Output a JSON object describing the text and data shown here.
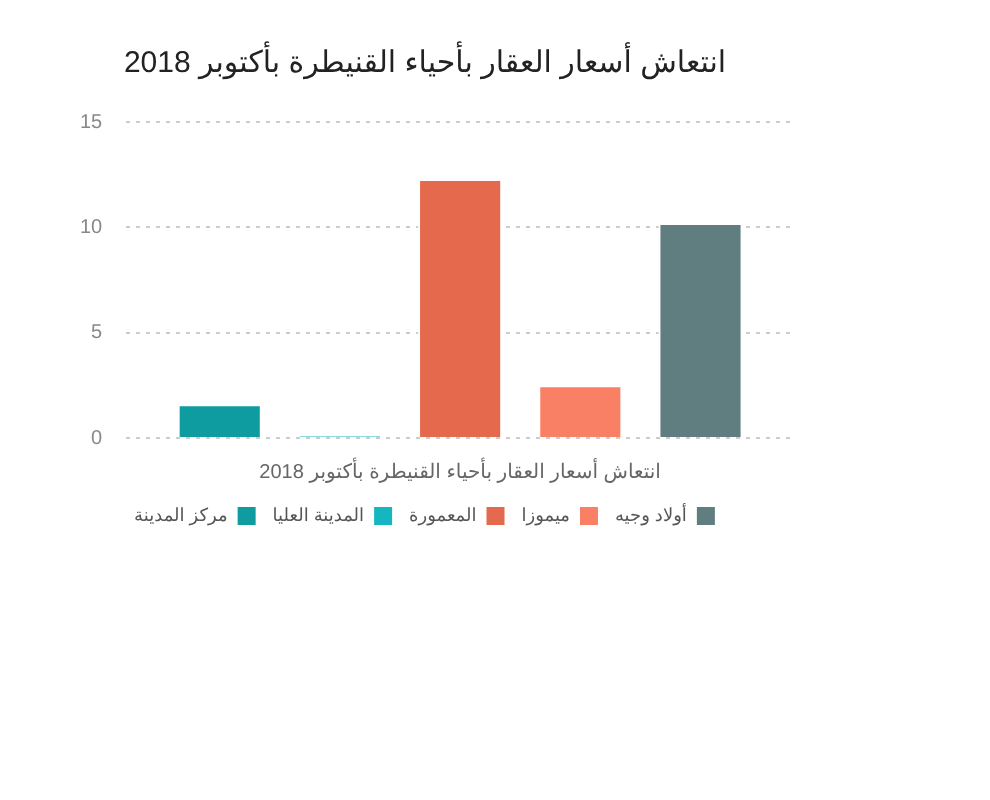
{
  "chart_data": {
    "type": "bar",
    "title": "انتعاش أسعار العقار بأحياء القنيطرة بأكتوبر 2018",
    "categories": [
      "انتعاش أسعار العقار بأحياء القنيطرة بأكتوبر 2018"
    ],
    "series": [
      {
        "name": "مركز المدينة",
        "color": "#0e9ca0",
        "values": [
          1.6
        ]
      },
      {
        "name": "المدينة العليا",
        "color": "#14b6c0",
        "values": [
          0.1
        ]
      },
      {
        "name": "المعمورة",
        "color": "#e5694c",
        "values": [
          12.3
        ]
      },
      {
        "name": "ميموزا",
        "color": "#f98064",
        "values": [
          2.5
        ]
      },
      {
        "name": "أولاد وجيه",
        "color": "#607d80",
        "values": [
          10.2
        ]
      }
    ],
    "ylim": [
      0,
      15
    ],
    "yticks": [
      0,
      5,
      10,
      15
    ],
    "grid": "y",
    "legend": "bottom"
  }
}
